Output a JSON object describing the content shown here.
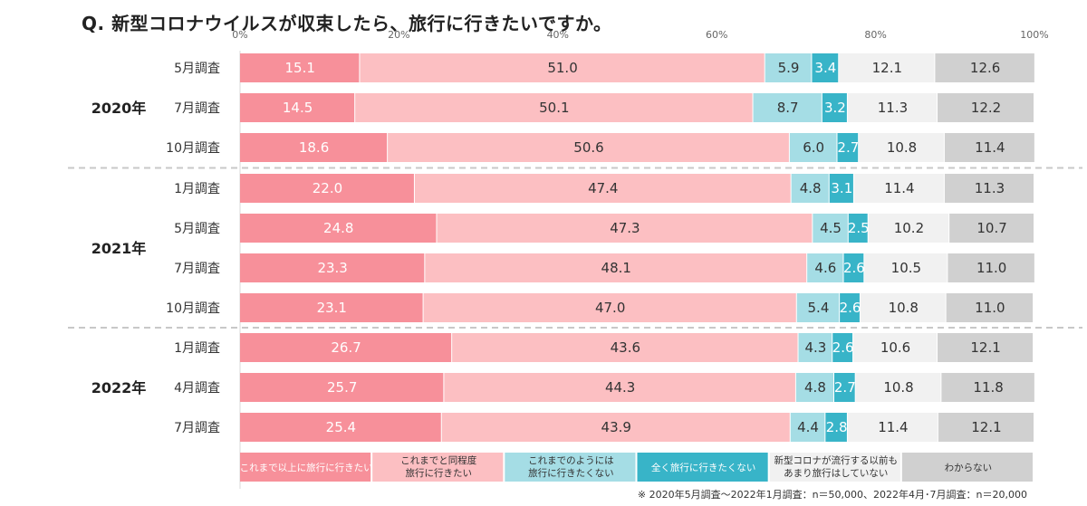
{
  "title": "Q.  新型コロナウイルスが収束したら、旅行に行きたいですか。",
  "footnote": "※  2020年5月調査～2022年1月調査：n＝50,000、2022年4月･7月調査：n＝20,000",
  "colors": {
    "series": [
      "#f7909a",
      "#fcbfc2",
      "#a5dde5",
      "#38b4c8",
      "#f1f1f1",
      "#d0d0d0"
    ],
    "label_text": [
      "#ffffff",
      "#333333",
      "#333333",
      "#ffffff",
      "#333333",
      "#333333"
    ],
    "separator": "#c8c8c8",
    "axis_text": "#666666"
  },
  "chart_data": {
    "type": "bar",
    "orientation": "horizontal",
    "stacked": true,
    "percent_scale": true,
    "xlim": [
      0,
      100
    ],
    "xticks": [
      "0%",
      "20%",
      "40%",
      "60%",
      "80%",
      "100%"
    ],
    "groups": [
      {
        "label": "2020年",
        "rows": [
          0,
          1,
          2
        ]
      },
      {
        "label": "2021年",
        "rows": [
          3,
          4,
          5,
          6
        ]
      },
      {
        "label": "2022年",
        "rows": [
          7,
          8,
          9
        ]
      }
    ],
    "categories": [
      "5月調査",
      "7月調査",
      "10月調査",
      "1月調査",
      "5月調査",
      "7月調査",
      "10月調査",
      "1月調査",
      "4月調査",
      "7月調査"
    ],
    "series": [
      {
        "name": "これまで以上に旅行に行きたい",
        "values": [
          15.1,
          14.5,
          18.6,
          22.0,
          24.8,
          23.3,
          23.1,
          26.7,
          25.7,
          25.4
        ]
      },
      {
        "name": "これまでと同程度旅行に行きたい",
        "values": [
          51.0,
          50.1,
          50.6,
          47.4,
          47.3,
          48.1,
          47.0,
          43.6,
          44.3,
          43.9
        ]
      },
      {
        "name": "これまでのようには旅行に行きたくない",
        "values": [
          5.9,
          8.7,
          6.0,
          4.8,
          4.5,
          4.6,
          5.4,
          4.3,
          4.8,
          4.4
        ]
      },
      {
        "name": "全く旅行に行きたくない",
        "values": [
          3.4,
          3.2,
          2.7,
          3.1,
          2.5,
          2.6,
          2.6,
          2.6,
          2.7,
          2.8
        ]
      },
      {
        "name": "新型コロナが流行する以前もあまり旅行はしていない",
        "values": [
          12.1,
          11.3,
          10.8,
          11.4,
          10.2,
          10.5,
          10.8,
          10.6,
          10.8,
          11.4
        ]
      },
      {
        "name": "わからない",
        "values": [
          12.6,
          12.2,
          11.4,
          11.3,
          10.7,
          11.0,
          11.0,
          12.1,
          11.8,
          12.1
        ]
      }
    ],
    "legend": {
      "placement": "bottom",
      "entries": [
        [
          "これまで以上に旅行に行きたい"
        ],
        [
          "これまでと同程度",
          "旅行に行きたい"
        ],
        [
          "これまでのようには",
          "旅行に行きたくない"
        ],
        [
          "全く旅行に行きたくない"
        ],
        [
          "新型コロナが流行する以前も",
          "あまり旅行はしていない"
        ],
        [
          "わからない"
        ]
      ]
    }
  }
}
